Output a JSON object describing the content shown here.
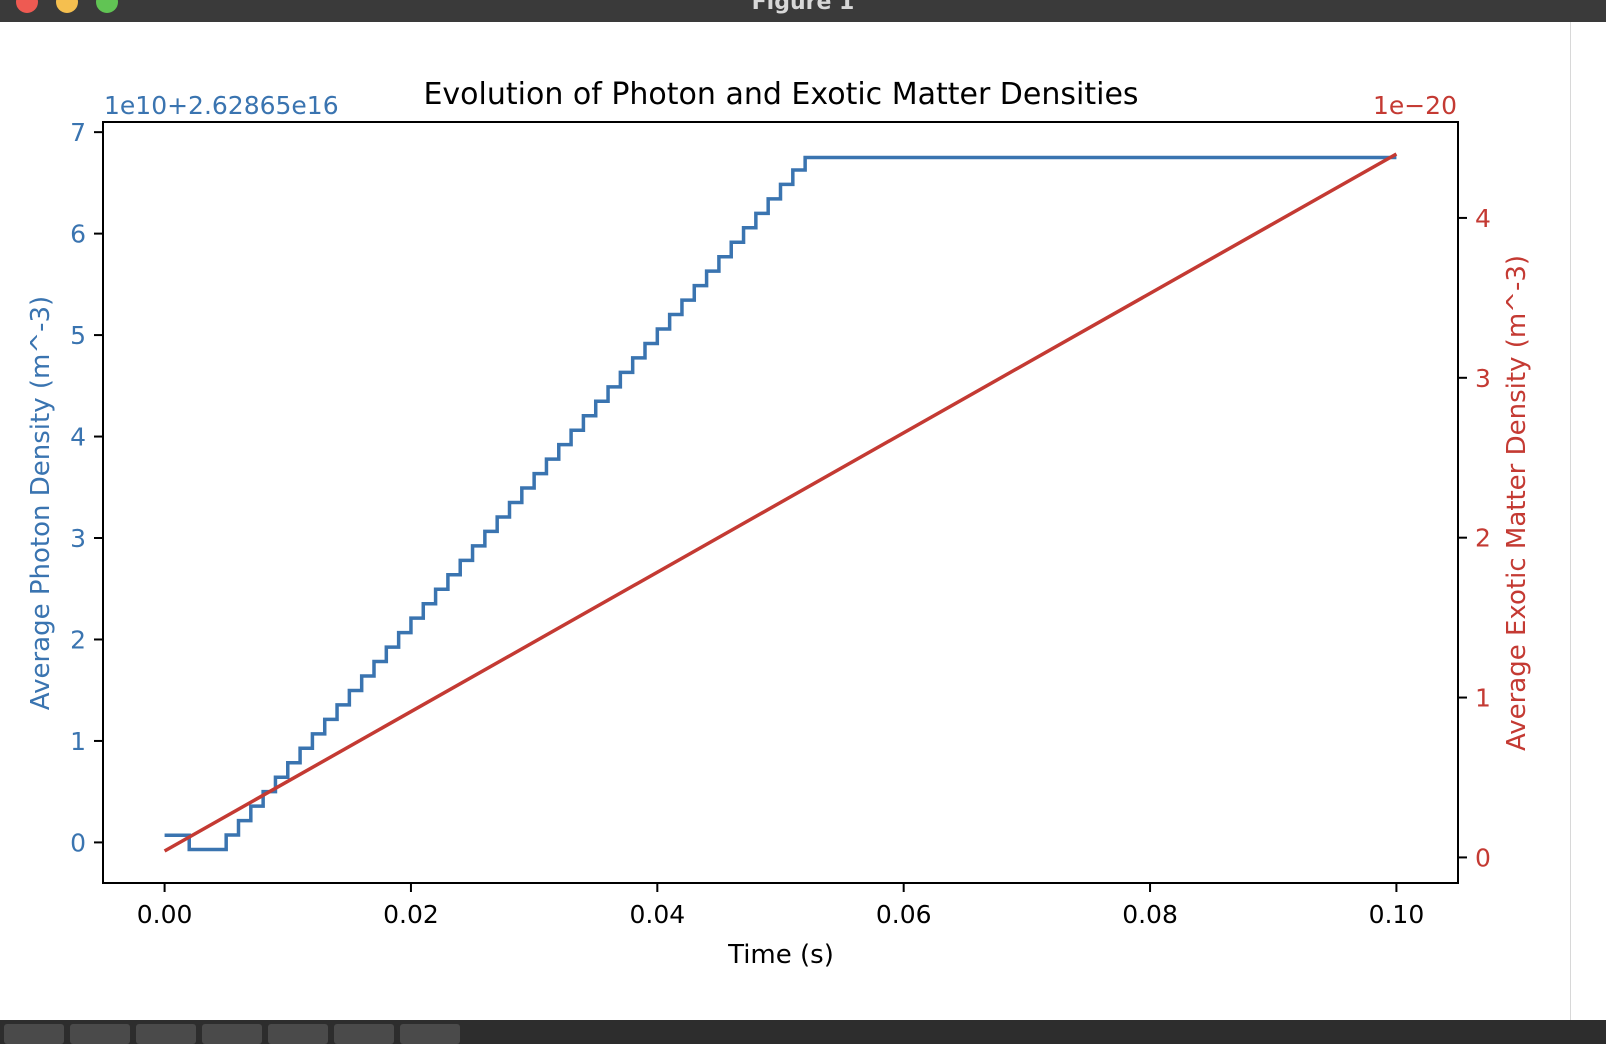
{
  "window": {
    "title": "Figure 1"
  },
  "toolbar": {
    "buttons": [
      "home-icon",
      "back-icon",
      "forward-icon",
      "pan-icon",
      "zoom-icon",
      "configure-icon",
      "save-icon"
    ]
  },
  "chart_data": {
    "type": "line",
    "title": "Evolution of Photon and Exotic Matter Densities",
    "xlabel": "Time (s)",
    "x_ticks": [
      "0.00",
      "0.02",
      "0.04",
      "0.06",
      "0.08",
      "0.10"
    ],
    "xlim": [
      -0.005,
      0.105
    ],
    "left_axis": {
      "ylabel": "Average Photon Density (m^-3)",
      "offset_text": "1e10+2.62865e16",
      "ticks": [
        "0",
        "1",
        "2",
        "3",
        "4",
        "5",
        "6",
        "7"
      ],
      "ylim": [
        -0.4,
        7.1
      ],
      "color": "#3a74b0"
    },
    "right_axis": {
      "ylabel": "Average Exotic Matter Density (m^-3)",
      "offset_text": "1e−20",
      "ticks": [
        "0",
        "1",
        "2",
        "3",
        "4"
      ],
      "ylim": [
        -0.16,
        4.6
      ],
      "color": "#c43a33"
    },
    "series": [
      {
        "axis": "left",
        "color": "#3a74b0",
        "style": "step",
        "x_start": 0.0,
        "x_end": 0.1,
        "step_count": 100,
        "initial_values": [
          0.07,
          0.07,
          -0.07,
          -0.07,
          -0.07
        ],
        "end_value": 6.75,
        "step_size_after_initial": 0.1425
      },
      {
        "axis": "right",
        "color": "#c43a33",
        "style": "line",
        "x": [
          0.0,
          0.1
        ],
        "values": [
          0.04,
          4.4
        ]
      }
    ]
  }
}
